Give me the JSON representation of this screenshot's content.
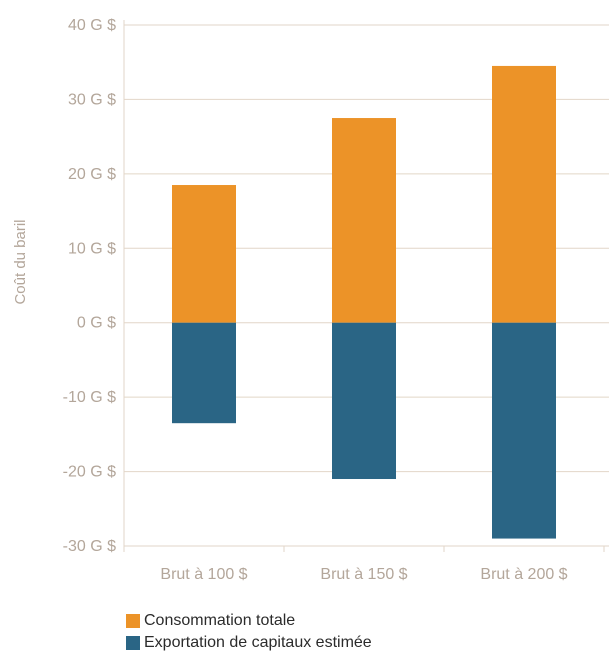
{
  "chart_data": {
    "type": "bar",
    "stacked": true,
    "categories": [
      "Brut à 100 $",
      "Brut à 150 $",
      "Brut à 200 $"
    ],
    "series": [
      {
        "name": "Consommation totale",
        "color": "#ec9328",
        "values": [
          18.5,
          27.5,
          34.5
        ]
      },
      {
        "name": "Exportation de capitaux estimée",
        "color": "#2a6585",
        "values": [
          -13.5,
          -21,
          -29
        ]
      }
    ],
    "ylabel": "Coût du baril",
    "ylim": [
      -30,
      40
    ],
    "yticks": [
      40,
      30,
      20,
      10,
      0,
      -10,
      -20,
      -30
    ],
    "ytick_labels": [
      "40 G $",
      "30 G $",
      "20 G $",
      "10 G $",
      "0 G $",
      "-10 G $",
      "-20 G $",
      "-30 G $"
    ],
    "grid": true,
    "gridline_color": "#e2d6c8",
    "legend_position": "bottom"
  }
}
